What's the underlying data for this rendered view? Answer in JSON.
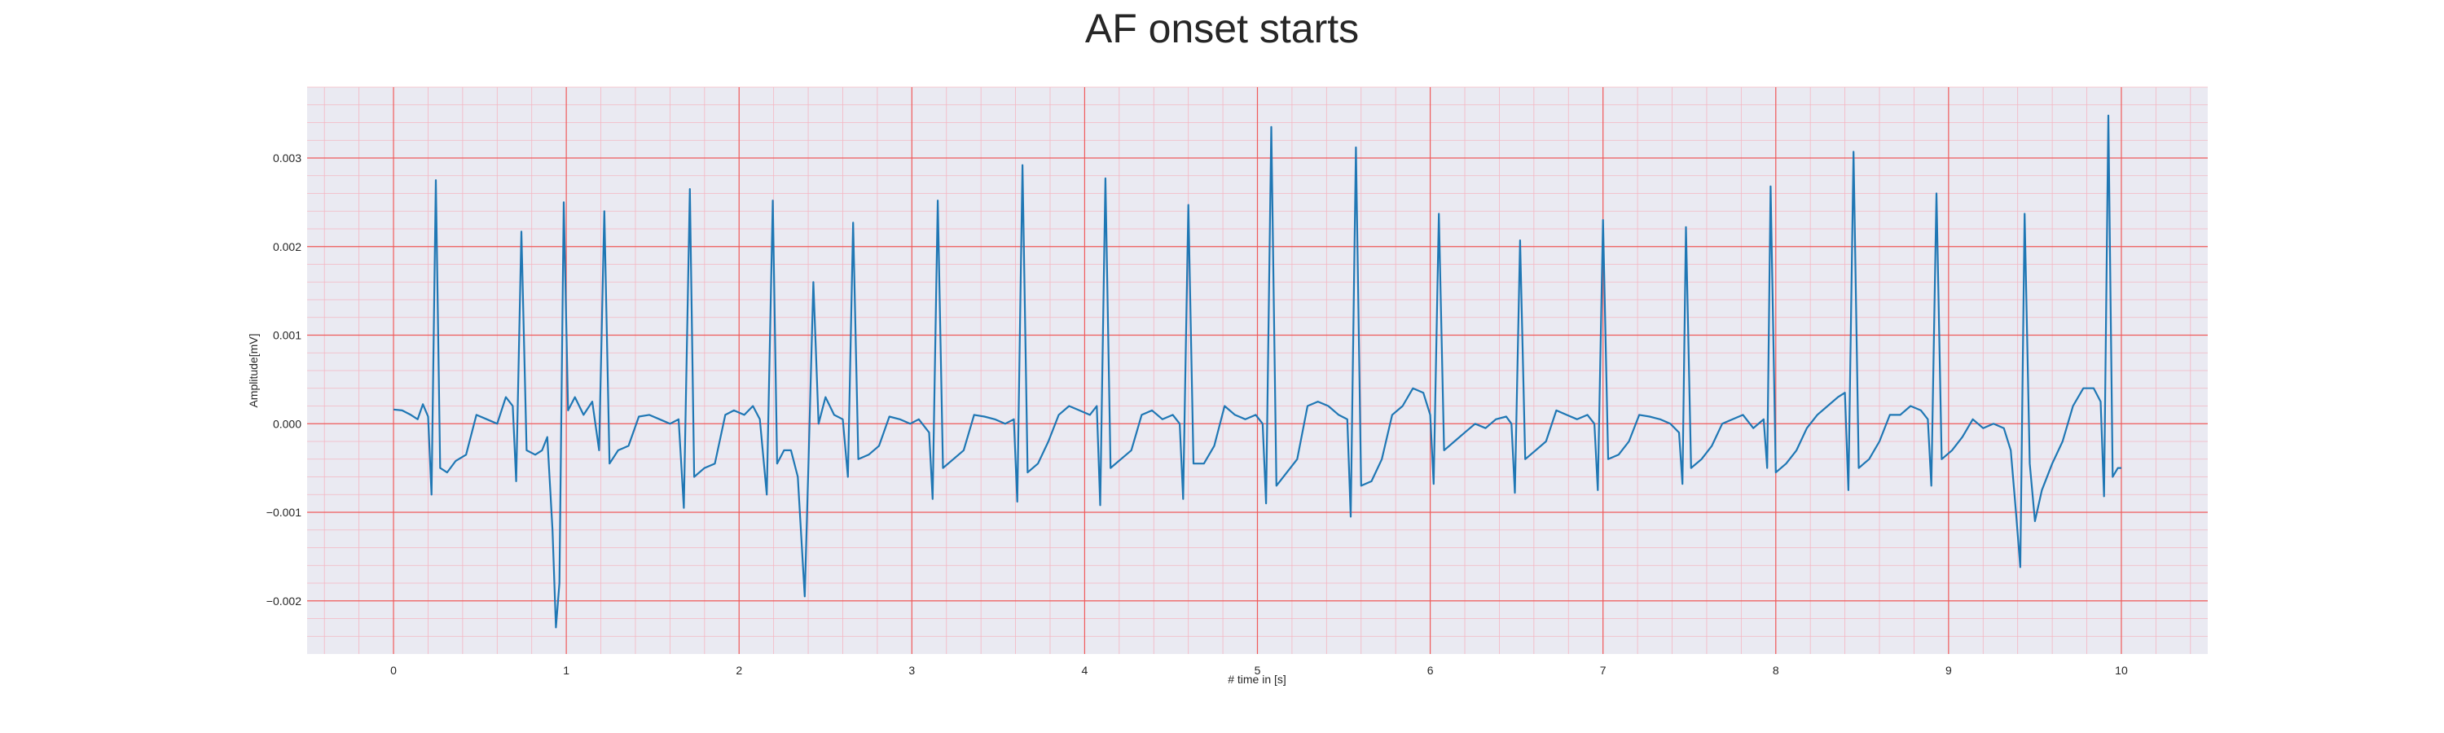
{
  "chart_data": {
    "type": "line",
    "title": "AF onset starts",
    "xlabel": "# time in [s]",
    "ylabel": "Amplitude[mV]",
    "xlim": [
      -0.5,
      10.5
    ],
    "ylim": [
      -0.0026,
      0.0038
    ],
    "x_ticks": [
      0,
      1,
      2,
      3,
      4,
      5,
      6,
      7,
      8,
      9,
      10
    ],
    "x_tick_labels": [
      "0",
      "1",
      "2",
      "3",
      "4",
      "5",
      "6",
      "7",
      "8",
      "9",
      "10"
    ],
    "y_ticks": [
      -0.002,
      -0.001,
      0.0,
      0.001,
      0.002,
      0.003
    ],
    "y_tick_labels": [
      "−0.002",
      "−0.001",
      "0.000",
      "0.001",
      "0.002",
      "0.003"
    ],
    "grid": true,
    "minor_grid": true,
    "colors": {
      "line": "#1f77b4",
      "plot_background": "#eaeaf2",
      "major_grid": "#ef5b5b",
      "minor_grid": "#f4b6c2"
    },
    "series": [
      {
        "points": [
          [
            0.0,
            0.00016
          ],
          [
            0.05,
            0.00015
          ],
          [
            0.1,
            0.0001
          ],
          [
            0.14,
            5e-05
          ],
          [
            0.17,
            0.00022
          ],
          [
            0.2,
            8e-05
          ],
          [
            0.22,
            -0.0008
          ],
          [
            0.245,
            0.00275
          ],
          [
            0.27,
            -0.0005
          ],
          [
            0.31,
            -0.00055
          ],
          [
            0.36,
            -0.00042
          ],
          [
            0.42,
            -0.00035
          ],
          [
            0.48,
            0.0001
          ],
          [
            0.54,
            5e-05
          ],
          [
            0.6,
            0.0
          ],
          [
            0.65,
            0.0003
          ],
          [
            0.69,
            0.0002
          ],
          [
            0.71,
            -0.00065
          ],
          [
            0.74,
            0.00217
          ],
          [
            0.77,
            -0.0003
          ],
          [
            0.82,
            -0.00035
          ],
          [
            0.86,
            -0.0003
          ],
          [
            0.89,
            -0.00015
          ],
          [
            0.92,
            -0.0012
          ],
          [
            0.94,
            -0.0023
          ],
          [
            0.96,
            -0.0018
          ],
          [
            0.985,
            0.0025
          ],
          [
            1.01,
            0.00015
          ],
          [
            1.05,
            0.0003
          ],
          [
            1.1,
            0.0001
          ],
          [
            1.15,
            0.00025
          ],
          [
            1.19,
            -0.0003
          ],
          [
            1.22,
            0.0024
          ],
          [
            1.25,
            -0.00045
          ],
          [
            1.3,
            -0.0003
          ],
          [
            1.36,
            -0.00025
          ],
          [
            1.42,
            8e-05
          ],
          [
            1.48,
            0.0001
          ],
          [
            1.54,
            5e-05
          ],
          [
            1.6,
            0.0
          ],
          [
            1.65,
            5e-05
          ],
          [
            1.68,
            -0.00095
          ],
          [
            1.715,
            0.00265
          ],
          [
            1.74,
            -0.0006
          ],
          [
            1.8,
            -0.0005
          ],
          [
            1.86,
            -0.00045
          ],
          [
            1.92,
            0.0001
          ],
          [
            1.97,
            0.00015
          ],
          [
            2.03,
            0.0001
          ],
          [
            2.08,
            0.0002
          ],
          [
            2.12,
            5e-05
          ],
          [
            2.16,
            -0.0008
          ],
          [
            2.195,
            0.00252
          ],
          [
            2.22,
            -0.00045
          ],
          [
            2.26,
            -0.0003
          ],
          [
            2.3,
            -0.0003
          ],
          [
            2.34,
            -0.0006
          ],
          [
            2.38,
            -0.00195
          ],
          [
            2.4,
            -0.00055
          ],
          [
            2.43,
            0.0016
          ],
          [
            2.46,
            0.0
          ],
          [
            2.5,
            0.0003
          ],
          [
            2.55,
            0.0001
          ],
          [
            2.6,
            5e-05
          ],
          [
            2.63,
            -0.0006
          ],
          [
            2.66,
            0.00227
          ],
          [
            2.69,
            -0.0004
          ],
          [
            2.75,
            -0.00035
          ],
          [
            2.81,
            -0.00025
          ],
          [
            2.87,
            8e-05
          ],
          [
            2.93,
            5e-05
          ],
          [
            2.99,
            0.0
          ],
          [
            3.04,
            5e-05
          ],
          [
            3.1,
            -0.0001
          ],
          [
            3.12,
            -0.00085
          ],
          [
            3.15,
            0.00252
          ],
          [
            3.18,
            -0.0005
          ],
          [
            3.24,
            -0.0004
          ],
          [
            3.3,
            -0.0003
          ],
          [
            3.36,
            0.0001
          ],
          [
            3.42,
            8e-05
          ],
          [
            3.48,
            5e-05
          ],
          [
            3.54,
            0.0
          ],
          [
            3.59,
            5e-05
          ],
          [
            3.61,
            -0.00088
          ],
          [
            3.64,
            0.00292
          ],
          [
            3.67,
            -0.00055
          ],
          [
            3.73,
            -0.00045
          ],
          [
            3.79,
            -0.0002
          ],
          [
            3.85,
            0.0001
          ],
          [
            3.91,
            0.0002
          ],
          [
            3.97,
            0.00015
          ],
          [
            4.03,
            0.0001
          ],
          [
            4.07,
            0.0002
          ],
          [
            4.09,
            -0.00092
          ],
          [
            4.12,
            0.00277
          ],
          [
            4.15,
            -0.0005
          ],
          [
            4.21,
            -0.0004
          ],
          [
            4.27,
            -0.0003
          ],
          [
            4.33,
            0.0001
          ],
          [
            4.39,
            0.00015
          ],
          [
            4.45,
            5e-05
          ],
          [
            4.51,
            0.0001
          ],
          [
            4.55,
            0.0
          ],
          [
            4.57,
            -0.00085
          ],
          [
            4.6,
            0.00247
          ],
          [
            4.63,
            -0.00045
          ],
          [
            4.69,
            -0.00045
          ],
          [
            4.75,
            -0.00025
          ],
          [
            4.81,
            0.0002
          ],
          [
            4.87,
            0.0001
          ],
          [
            4.93,
            5e-05
          ],
          [
            4.99,
            0.0001
          ],
          [
            5.03,
            0.0
          ],
          [
            5.05,
            -0.0009
          ],
          [
            5.08,
            0.00335
          ],
          [
            5.11,
            -0.0007
          ],
          [
            5.17,
            -0.00055
          ],
          [
            5.23,
            -0.0004
          ],
          [
            5.29,
            0.0002
          ],
          [
            5.35,
            0.00025
          ],
          [
            5.41,
            0.0002
          ],
          [
            5.47,
            0.0001
          ],
          [
            5.52,
            5e-05
          ],
          [
            5.54,
            -0.00105
          ],
          [
            5.57,
            0.00312
          ],
          [
            5.6,
            -0.0007
          ],
          [
            5.66,
            -0.00065
          ],
          [
            5.72,
            -0.0004
          ],
          [
            5.78,
            0.0001
          ],
          [
            5.84,
            0.0002
          ],
          [
            5.9,
            0.0004
          ],
          [
            5.96,
            0.00035
          ],
          [
            6.0,
            0.0001
          ],
          [
            6.02,
            -0.00068
          ],
          [
            6.05,
            0.00237
          ],
          [
            6.08,
            -0.0003
          ],
          [
            6.14,
            -0.0002
          ],
          [
            6.2,
            -0.0001
          ],
          [
            6.26,
            0.0
          ],
          [
            6.32,
            -5e-05
          ],
          [
            6.38,
            5e-05
          ],
          [
            6.44,
            8e-05
          ],
          [
            6.47,
            0.0
          ],
          [
            6.49,
            -0.00078
          ],
          [
            6.52,
            0.00207
          ],
          [
            6.55,
            -0.0004
          ],
          [
            6.61,
            -0.0003
          ],
          [
            6.67,
            -0.0002
          ],
          [
            6.73,
            0.00015
          ],
          [
            6.79,
            0.0001
          ],
          [
            6.85,
            5e-05
          ],
          [
            6.91,
            0.0001
          ],
          [
            6.95,
            0.0
          ],
          [
            6.97,
            -0.00075
          ],
          [
            7.0,
            0.0023
          ],
          [
            7.03,
            -0.0004
          ],
          [
            7.09,
            -0.00035
          ],
          [
            7.15,
            -0.0002
          ],
          [
            7.21,
            0.0001
          ],
          [
            7.27,
            8e-05
          ],
          [
            7.33,
            5e-05
          ],
          [
            7.39,
            0.0
          ],
          [
            7.44,
            -0.0001
          ],
          [
            7.46,
            -0.00068
          ],
          [
            7.48,
            0.00222
          ],
          [
            7.51,
            -0.0005
          ],
          [
            7.57,
            -0.0004
          ],
          [
            7.63,
            -0.00025
          ],
          [
            7.69,
            0.0
          ],
          [
            7.75,
            5e-05
          ],
          [
            7.81,
            0.0001
          ],
          [
            7.87,
            -5e-05
          ],
          [
            7.93,
            5e-05
          ],
          [
            7.95,
            -0.0005
          ],
          [
            7.97,
            0.00268
          ],
          [
            8.0,
            -0.00055
          ],
          [
            8.06,
            -0.00045
          ],
          [
            8.12,
            -0.0003
          ],
          [
            8.18,
            -5e-05
          ],
          [
            8.24,
            0.0001
          ],
          [
            8.3,
            0.0002
          ],
          [
            8.36,
            0.0003
          ],
          [
            8.4,
            0.00035
          ],
          [
            8.42,
            -0.00075
          ],
          [
            8.45,
            0.00307
          ],
          [
            8.48,
            -0.0005
          ],
          [
            8.54,
            -0.0004
          ],
          [
            8.6,
            -0.0002
          ],
          [
            8.66,
            0.0001
          ],
          [
            8.72,
            0.0001
          ],
          [
            8.78,
            0.0002
          ],
          [
            8.84,
            0.00015
          ],
          [
            8.88,
            5e-05
          ],
          [
            8.9,
            -0.0007
          ],
          [
            8.93,
            0.0026
          ],
          [
            8.96,
            -0.0004
          ],
          [
            9.02,
            -0.0003
          ],
          [
            9.08,
            -0.00015
          ],
          [
            9.14,
            5e-05
          ],
          [
            9.2,
            -5e-05
          ],
          [
            9.26,
            0.0
          ],
          [
            9.32,
            -5e-05
          ],
          [
            9.36,
            -0.0003
          ],
          [
            9.39,
            -0.001
          ],
          [
            9.415,
            -0.00162
          ],
          [
            9.44,
            0.00237
          ],
          [
            9.47,
            -0.00045
          ],
          [
            9.5,
            -0.0011
          ],
          [
            9.54,
            -0.00075
          ],
          [
            9.6,
            -0.00045
          ],
          [
            9.66,
            -0.0002
          ],
          [
            9.72,
            0.0002
          ],
          [
            9.78,
            0.0004
          ],
          [
            9.84,
            0.0004
          ],
          [
            9.88,
            0.00025
          ],
          [
            9.9,
            -0.00082
          ],
          [
            9.925,
            0.00348
          ],
          [
            9.95,
            -0.0006
          ],
          [
            9.98,
            -0.0005
          ],
          [
            10.0,
            -0.0005
          ]
        ]
      }
    ]
  }
}
